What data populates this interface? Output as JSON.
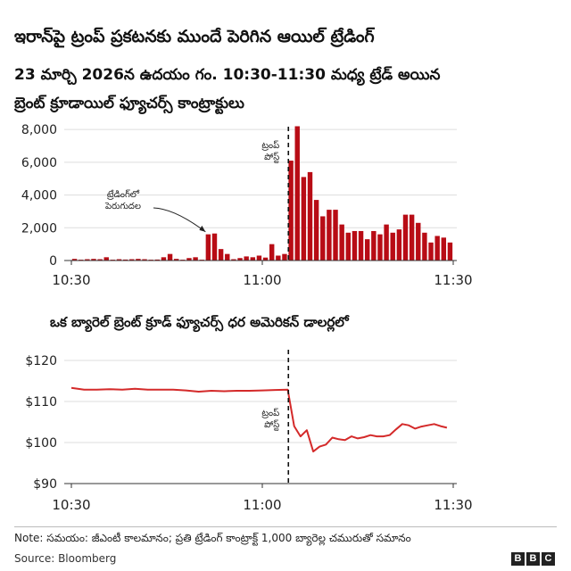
{
  "title": "ఇరాన్‌పై ట్రంప్ ప్రకటనకు ముందే పెరిగిన ఆయిల్ ట్రేడింగ్",
  "subtitle_line1": "23 మార్చి 2026న ఉదయం గం. 10:30-11:30 మధ్య ట్రేడ్ అయిన",
  "subtitle_line2": "బ్రెంట్ క్రూడాయిల్ ఫ్యూచర్స్ కాంట్రాక్టులు",
  "note": "Note: సమయం: జీఎంటీ కాలమానం; ప్రతి ట్రేడింగ్ కాంట్రాక్ట్ 1,000 బ్యారెల్ల చమురుతో సమానం",
  "source": "Source: Bloomberg",
  "logo": [
    "B",
    "B",
    "C"
  ],
  "colors": {
    "bars": "#b80c15",
    "line": "#d42a2a",
    "axis": "#333333",
    "grid": "#dddddd"
  },
  "chart_data": [
    {
      "type": "bar",
      "title": "",
      "xlabel": "",
      "ylabel": "",
      "x_ticks": [
        "10:30",
        "11:00",
        "11:30"
      ],
      "y_ticks": [
        "0",
        "2,000",
        "4,000",
        "6,000",
        "8,000"
      ],
      "ylim": [
        0,
        8500
      ],
      "grid": true,
      "x": [
        "10:30",
        "10:31",
        "10:32",
        "10:33",
        "10:34",
        "10:35",
        "10:36",
        "10:37",
        "10:38",
        "10:39",
        "10:40",
        "10:41",
        "10:42",
        "10:43",
        "10:44",
        "10:45",
        "10:46",
        "10:47",
        "10:48",
        "10:49",
        "10:50",
        "10:51",
        "10:52",
        "10:53",
        "10:54",
        "10:55",
        "10:56",
        "10:57",
        "10:58",
        "10:59",
        "11:00",
        "11:01",
        "11:02",
        "11:03",
        "11:04",
        "11:05",
        "11:06",
        "11:07",
        "11:08",
        "11:09",
        "11:10",
        "11:11",
        "11:12",
        "11:13",
        "11:14",
        "11:15",
        "11:16",
        "11:17",
        "11:18",
        "11:19",
        "11:20",
        "11:21",
        "11:22",
        "11:23",
        "11:24",
        "11:25",
        "11:26",
        "11:27",
        "11:28",
        "11:29"
      ],
      "values": [
        100,
        50,
        80,
        100,
        80,
        200,
        50,
        80,
        60,
        80,
        100,
        80,
        50,
        60,
        200,
        400,
        100,
        50,
        150,
        200,
        50,
        1600,
        1650,
        700,
        400,
        80,
        150,
        250,
        200,
        300,
        180,
        1000,
        300,
        400,
        6100,
        8200,
        5100,
        5400,
        3700,
        2700,
        3100,
        3100,
        2200,
        1700,
        1800,
        1800,
        1300,
        1800,
        1600,
        2200,
        1700,
        1900,
        2800,
        2800,
        2300,
        1700,
        1100,
        1500,
        1400,
        1100
      ],
      "annotations": [
        {
          "text": "ట్రేడింగ్‌లో పెరుగుదల",
          "at": "10:51"
        },
        {
          "text": "ట్రంప్ పోస్ట్",
          "at": "11:04"
        }
      ]
    },
    {
      "type": "line",
      "title": "ఒక బ్యారెల్ బ్రెంట్ క్రూడ్ ఫ్యూచర్స్ ధర అమెరికన్ డాలర్లలో",
      "xlabel": "",
      "ylabel": "",
      "x_ticks": [
        "10:30",
        "11:00",
        "11:30"
      ],
      "y_ticks": [
        "$90",
        "$100",
        "$110",
        "$120"
      ],
      "ylim": [
        90,
        120
      ],
      "grid": true,
      "series": [
        {
          "x": [
            "10:30",
            "10:32",
            "10:34",
            "10:36",
            "10:38",
            "10:40",
            "10:42",
            "10:44",
            "10:46",
            "10:48",
            "10:50",
            "10:52",
            "10:54",
            "10:56",
            "10:58",
            "11:00",
            "11:02",
            "11:04",
            "11:05",
            "11:06",
            "11:07",
            "11:08",
            "11:09",
            "11:10",
            "11:11",
            "11:12",
            "11:13",
            "11:14",
            "11:15",
            "11:16",
            "11:17",
            "11:18",
            "11:19",
            "11:20",
            "11:21",
            "11:22",
            "11:23",
            "11:24",
            "11:25",
            "11:26",
            "11:27",
            "11:28",
            "11:29"
          ],
          "values": [
            113.3,
            112.9,
            112.9,
            113.0,
            112.9,
            113.1,
            112.9,
            112.9,
            112.9,
            112.7,
            112.4,
            112.6,
            112.5,
            112.6,
            112.6,
            112.7,
            112.8,
            112.9,
            104.0,
            101.5,
            103.0,
            97.8,
            99.0,
            99.5,
            101.2,
            100.8,
            100.6,
            101.5,
            101.0,
            101.3,
            101.8,
            101.5,
            101.5,
            101.8,
            103.2,
            104.5,
            104.2,
            103.4,
            103.9,
            104.2,
            104.5,
            104.0,
            103.6
          ]
        }
      ],
      "annotations": [
        {
          "text": "ట్రంప్ పోస్ట్",
          "at": "11:04"
        }
      ]
    }
  ]
}
